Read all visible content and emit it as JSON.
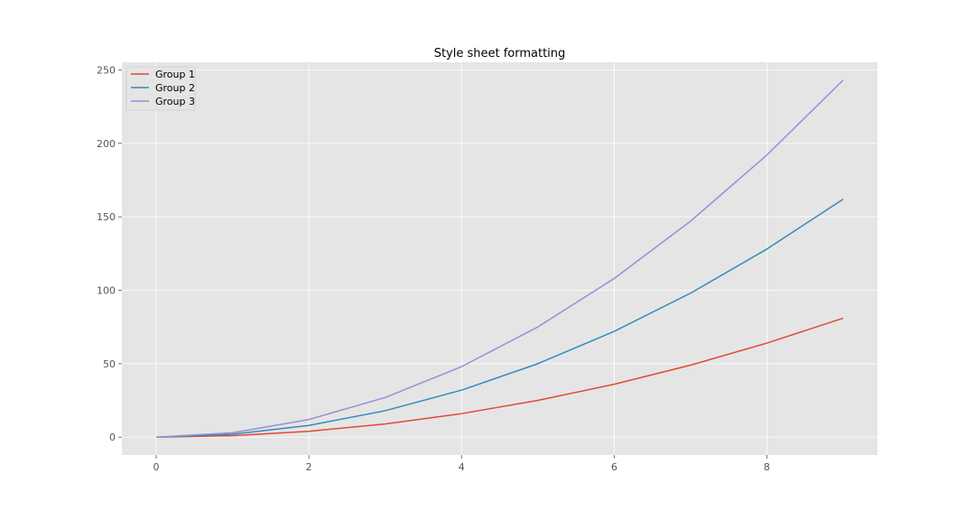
{
  "chart_data": {
    "type": "line",
    "title": "Style sheet formatting",
    "xlabel": "",
    "ylabel": "",
    "xlim": [
      -0.45,
      9.45
    ],
    "ylim": [
      -12.15,
      255.15
    ],
    "x": [
      0,
      1,
      2,
      3,
      4,
      5,
      6,
      7,
      8,
      9
    ],
    "x_ticks": [
      0,
      2,
      4,
      6,
      8
    ],
    "y_ticks": [
      0,
      50,
      100,
      150,
      200,
      250
    ],
    "grid": true,
    "legend_position": "top-left",
    "series": [
      {
        "name": "Group 1",
        "color": "#E24A33",
        "values": [
          0,
          1,
          4,
          9,
          16,
          25,
          36,
          49,
          64,
          81
        ]
      },
      {
        "name": "Group 2",
        "color": "#348ABD",
        "values": [
          0,
          2,
          8,
          18,
          32,
          50,
          72,
          98,
          128,
          162
        ]
      },
      {
        "name": "Group 3",
        "color": "#988ED5",
        "values": [
          0,
          3,
          12,
          27,
          48,
          75,
          108,
          147,
          192,
          243
        ]
      }
    ],
    "colors": {
      "plot_background": "#E5E5E5",
      "grid": "#FFFFFF",
      "tick_text": "#555555"
    }
  }
}
